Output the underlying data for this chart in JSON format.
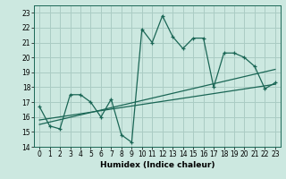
{
  "bg_color": "#cce8e0",
  "grid_color": "#aaccC4",
  "line_color": "#1a6655",
  "xlabel": "Humidex (Indice chaleur)",
  "xlim": [
    -0.5,
    23.5
  ],
  "ylim": [
    14,
    23.5
  ],
  "yticks": [
    14,
    15,
    16,
    17,
    18,
    19,
    20,
    21,
    22,
    23
  ],
  "xticks": [
    0,
    1,
    2,
    3,
    4,
    5,
    6,
    7,
    8,
    9,
    10,
    11,
    12,
    13,
    14,
    15,
    16,
    17,
    18,
    19,
    20,
    21,
    22,
    23
  ],
  "series1_x": [
    0,
    1,
    2,
    3,
    4,
    5,
    6,
    7,
    8,
    9,
    10,
    11,
    12,
    13,
    14,
    15,
    16,
    17,
    18,
    19,
    20,
    21,
    22,
    23
  ],
  "series1_y": [
    16.7,
    15.4,
    15.2,
    17.5,
    17.5,
    17.0,
    16.0,
    17.2,
    14.8,
    14.3,
    21.9,
    21.0,
    22.8,
    21.4,
    20.6,
    21.3,
    21.3,
    18.0,
    20.3,
    20.3,
    20.0,
    19.4,
    17.9,
    18.3
  ],
  "trend1_x": [
    0,
    23
  ],
  "trend1_y": [
    15.5,
    19.2
  ],
  "trend2_x": [
    0,
    23
  ],
  "trend2_y": [
    15.8,
    18.2
  ],
  "marker_size": 3.5,
  "tick_fontsize": 5.5,
  "xlabel_fontsize": 6.5
}
